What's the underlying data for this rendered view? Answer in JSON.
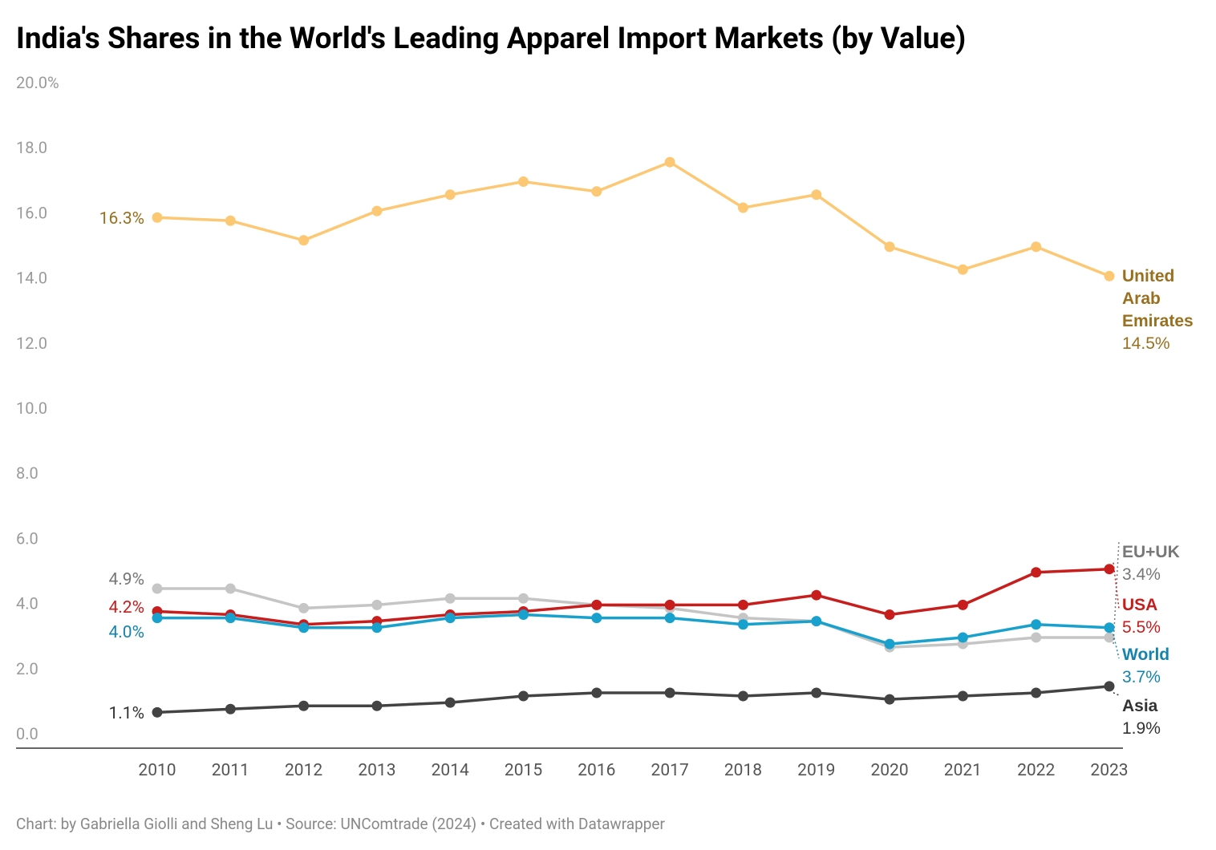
{
  "chart_data": {
    "type": "line",
    "title": "India's Shares in the World's Leading Apparel Import Markets (by Value)",
    "footer": "Chart: by Gabriella Giolli and Sheng Lu • Source: UNComtrade (2024) • Created with Datawrapper",
    "categories": [
      "2010",
      "2011",
      "2012",
      "2013",
      "2014",
      "2015",
      "2016",
      "2017",
      "2018",
      "2019",
      "2020",
      "2021",
      "2022",
      "2023"
    ],
    "ylim": [
      0,
      20
    ],
    "yticks": [
      {
        "value": 0,
        "label": "0.0"
      },
      {
        "value": 2,
        "label": "2.0"
      },
      {
        "value": 4,
        "label": "4.0"
      },
      {
        "value": 6,
        "label": "6.0"
      },
      {
        "value": 8,
        "label": "8.0"
      },
      {
        "value": 10,
        "label": "10.0"
      },
      {
        "value": 12,
        "label": "12.0"
      },
      {
        "value": 14,
        "label": "14.0"
      },
      {
        "value": 16,
        "label": "16.0"
      },
      {
        "value": 18,
        "label": "18.0"
      },
      {
        "value": 20,
        "label": "20.0%"
      }
    ],
    "grid": false,
    "series": [
      {
        "name": "United Arab Emirates",
        "color": "#fcc873",
        "label_color": "#98701f",
        "values": [
          16.3,
          16.2,
          15.6,
          16.5,
          17.0,
          17.4,
          17.1,
          18.0,
          16.6,
          17.0,
          15.4,
          14.7,
          15.4,
          14.5
        ],
        "value_labels": [
          "16.3%",
          null,
          null,
          null,
          null,
          null,
          null,
          null,
          null,
          null,
          null,
          null,
          null,
          "14.5%"
        ]
      },
      {
        "name": "EU+UK",
        "color": "#c5c5c5",
        "label_color": "#777777",
        "values": [
          4.9,
          4.9,
          4.3,
          4.4,
          4.6,
          4.6,
          4.4,
          4.3,
          4.0,
          3.9,
          3.1,
          3.2,
          3.4,
          3.4
        ],
        "value_labels": [
          "4.9%",
          null,
          null,
          null,
          null,
          null,
          null,
          null,
          null,
          null,
          null,
          null,
          null,
          "3.4%"
        ]
      },
      {
        "name": "USA",
        "color": "#c71e1d",
        "label_color": "#c71e1d",
        "values": [
          4.2,
          4.1,
          3.8,
          3.9,
          4.1,
          4.2,
          4.4,
          4.4,
          4.4,
          4.7,
          4.1,
          4.4,
          5.4,
          5.5
        ],
        "value_labels": [
          "4.2%",
          null,
          null,
          null,
          null,
          null,
          null,
          null,
          null,
          null,
          null,
          null,
          null,
          "5.5%"
        ]
      },
      {
        "name": "World",
        "color": "#18a1cd",
        "label_color": "#1584ad",
        "values": [
          4.0,
          4.0,
          3.7,
          3.7,
          4.0,
          4.1,
          4.0,
          4.0,
          3.8,
          3.9,
          3.2,
          3.4,
          3.8,
          3.7
        ],
        "value_labels": [
          "4.0%",
          null,
          null,
          null,
          null,
          null,
          null,
          null,
          null,
          null,
          null,
          null,
          null,
          "3.7%"
        ]
      },
      {
        "name": "Asia",
        "color": "#434343",
        "label_color": "#333333",
        "values": [
          1.1,
          1.2,
          1.3,
          1.3,
          1.4,
          1.6,
          1.7,
          1.7,
          1.6,
          1.7,
          1.5,
          1.6,
          1.7,
          1.9
        ],
        "value_labels": [
          "1.1%",
          null,
          null,
          null,
          null,
          null,
          null,
          null,
          null,
          null,
          null,
          null,
          null,
          "1.9%"
        ]
      }
    ]
  }
}
